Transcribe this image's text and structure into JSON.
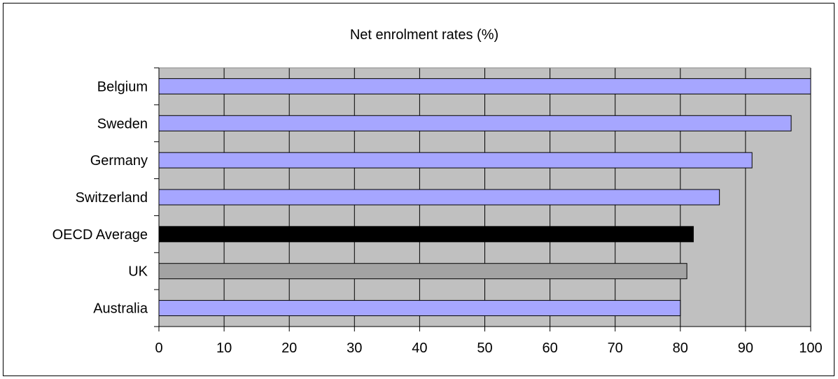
{
  "chart_data": {
    "type": "bar",
    "orientation": "horizontal",
    "title": "Net enrolment rates (%)",
    "xlabel": "",
    "ylabel": "",
    "categories": [
      "Belgium",
      "Sweden",
      "Germany",
      "Switzerland",
      "OECD Average",
      "UK",
      "Australia"
    ],
    "values": [
      100,
      97,
      91,
      86,
      82,
      81,
      80
    ],
    "bar_colors": [
      "#a6a6ff",
      "#a6a6ff",
      "#a6a6ff",
      "#a6a6ff",
      "#000000",
      "#a3a3a3",
      "#a6a6ff"
    ],
    "xlim": [
      0,
      100
    ],
    "xticks": [
      0,
      10,
      20,
      30,
      40,
      50,
      60,
      70,
      80,
      90,
      100
    ],
    "grid": true,
    "plot_background": "#c0c0c0",
    "legend": "none"
  }
}
